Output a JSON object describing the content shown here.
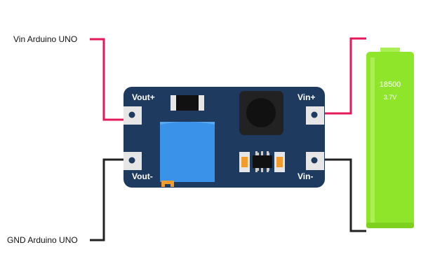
{
  "labels": {
    "vin_arduino": "Vin Arduino UNO",
    "gnd_arduino": "GND Arduino UNO"
  },
  "board": {
    "vout_plus": "Vout+",
    "vout_minus": "Vout-",
    "vin_plus": "Vin+",
    "vin_minus": "Vin-"
  },
  "battery": {
    "model": "18500",
    "voltage": "3.7V"
  },
  "colors": {
    "board": "#1e3a5f",
    "pad": "#e6e6e6",
    "potentiometer": "#3a93e8",
    "battery": "#8ee52a",
    "positive_wire": "#e5195a",
    "negative_wire": "#222222",
    "smd_orange": "#f39c2c"
  }
}
